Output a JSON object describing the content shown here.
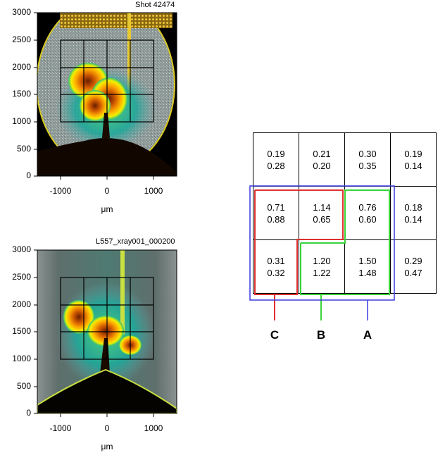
{
  "panels": [
    {
      "id": "shot",
      "label": "Shot 42474",
      "y_ticks": [
        "3000",
        "2500",
        "2000",
        "1500",
        "1000",
        "500",
        "0"
      ],
      "x_ticks": [
        "-1000",
        "0",
        "1000"
      ],
      "x_unit": "μm"
    },
    {
      "id": "xray",
      "label": "L557_xray001_000200",
      "y_ticks": [
        "3000",
        "2500",
        "2000",
        "1500",
        "1000",
        "500",
        "0"
      ],
      "x_ticks": [
        "-1000",
        "0",
        "1000"
      ],
      "x_unit": "μm"
    }
  ],
  "table": {
    "rows": [
      [
        [
          "0.19",
          "0.28"
        ],
        [
          "0.21",
          "0.20"
        ],
        [
          "0.30",
          "0.35"
        ],
        [
          "0.19",
          "0.14"
        ]
      ],
      [
        [
          "0.71",
          "0.88"
        ],
        [
          "1.14",
          "0.65"
        ],
        [
          "0.76",
          "0.60"
        ],
        [
          "0.18",
          "0.14"
        ]
      ],
      [
        [
          "0.31",
          "0.32"
        ],
        [
          "1.20",
          "1.22"
        ],
        [
          "1.50",
          "1.48"
        ],
        [
          "0.29",
          "0.47"
        ]
      ]
    ]
  },
  "regions": [
    {
      "label": "C",
      "color": "#e03030"
    },
    {
      "label": "B",
      "color": "#3ad43a"
    },
    {
      "label": "A",
      "color": "#3a3ae0"
    }
  ]
}
